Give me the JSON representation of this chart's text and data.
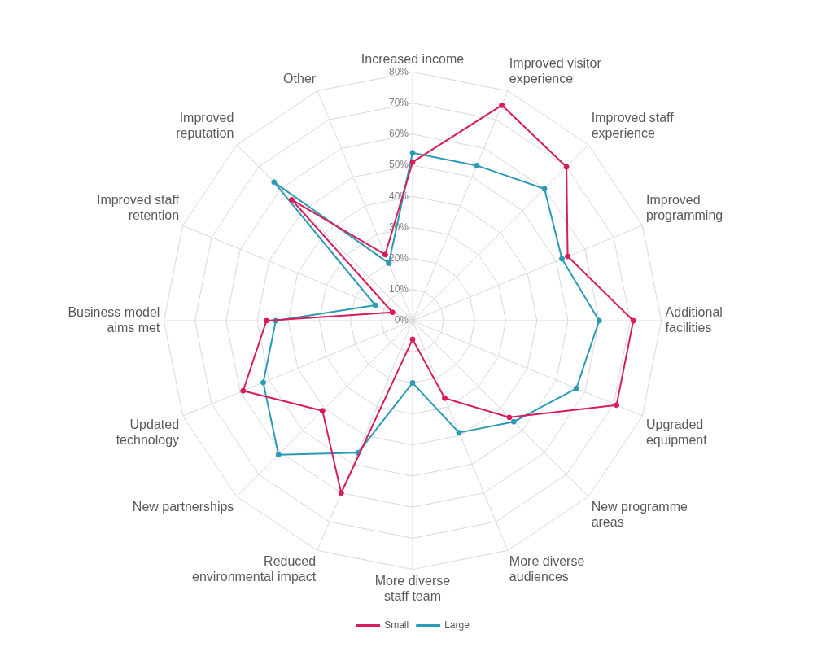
{
  "chart_data": {
    "type": "radar",
    "categories": [
      "Increased income",
      "Improved visitor experience",
      "Improved staff experience",
      "Improved programming",
      "Additional facilities",
      "Upgraded equipment",
      "New programme areas",
      "More diverse audiences",
      "More diverse staff team",
      "Reduced environmental impact",
      "New partnerships",
      "Updated technology",
      "Business model aims met",
      "Improved staff retention",
      "Improved reputation",
      "Other"
    ],
    "series": [
      {
        "name": "Small",
        "color": "#d81b5e",
        "values": [
          51,
          75,
          70,
          54,
          71,
          71,
          44,
          27,
          6,
          60,
          41,
          59,
          47,
          7,
          55,
          23
        ]
      },
      {
        "name": "Large",
        "color": "#2b9bb5",
        "values": [
          54,
          54,
          60,
          52,
          60,
          57,
          46,
          39,
          20,
          46,
          61,
          52,
          44,
          13,
          63,
          20
        ]
      }
    ],
    "ylim": [
      0,
      80
    ],
    "yticks": [
      {
        "value": 0,
        "label": "0%"
      },
      {
        "value": 10,
        "label": "10%"
      },
      {
        "value": 20,
        "label": "20%"
      },
      {
        "value": 30,
        "label": "30%"
      },
      {
        "value": 40,
        "label": "40%"
      },
      {
        "value": 50,
        "label": "50%"
      },
      {
        "value": 60,
        "label": "60%"
      },
      {
        "value": 70,
        "label": "70%"
      },
      {
        "value": 80,
        "label": "80%"
      }
    ],
    "grid": true,
    "legend": "bottom",
    "marker": "circle",
    "line_style": "solid"
  }
}
